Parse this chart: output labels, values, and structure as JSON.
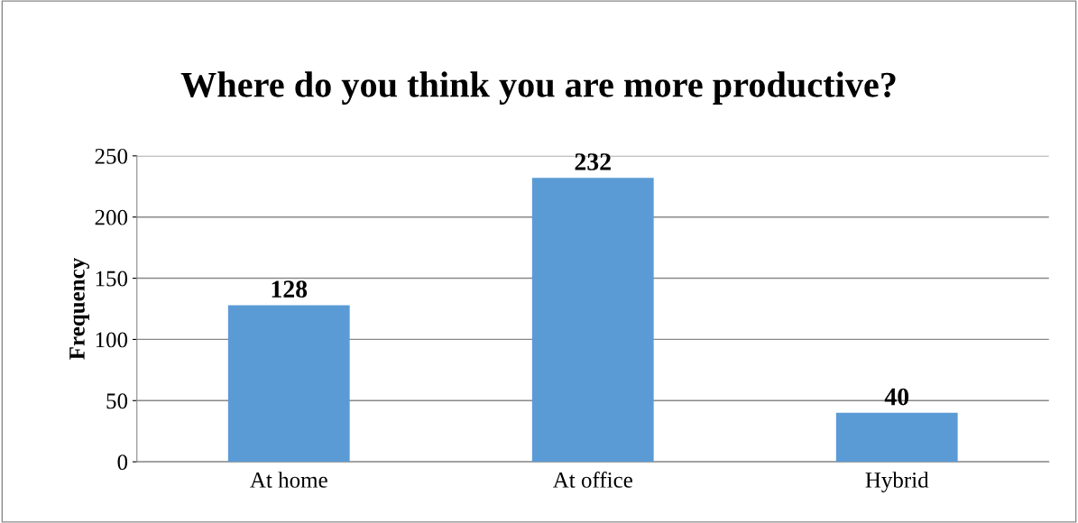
{
  "chart_data": {
    "type": "bar",
    "title": "Where do you think you are more productive?",
    "ylabel": "Frequency",
    "categories": [
      "At home",
      "At office",
      "Hybrid"
    ],
    "values": [
      128,
      232,
      40
    ],
    "color": "#5b9bd5",
    "ylim": [
      0,
      250
    ],
    "yticks": [
      0,
      50,
      100,
      150,
      200,
      250
    ],
    "grid": "y",
    "data_labels": true,
    "legend": false
  }
}
